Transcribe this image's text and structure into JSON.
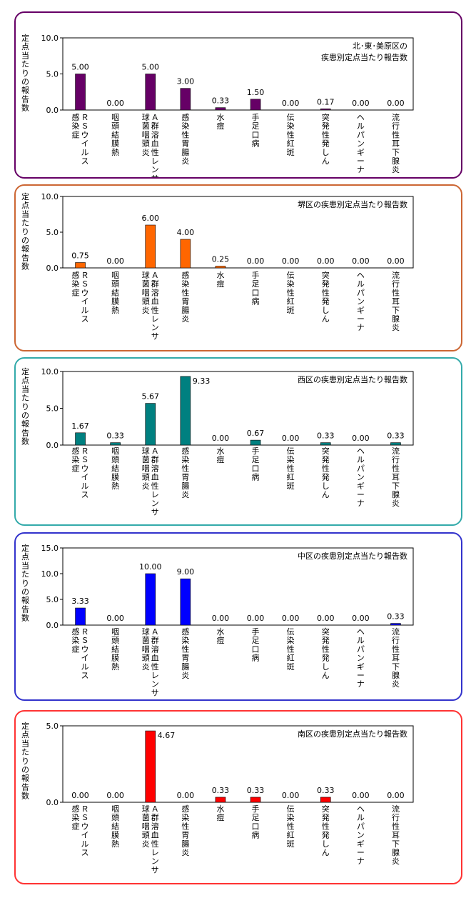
{
  "chart_data": [
    {
      "type": "bar",
      "title_lines": [
        "北･東･美原区の",
        "疾患別定点当たり報告数"
      ],
      "ylabel": "定点当たりの報告数",
      "ylim": [
        0,
        10
      ],
      "yticks": [
        "0.0",
        "5.0",
        "10.0"
      ],
      "color": "#660066",
      "categories": [
        [
          "ＲＳウイルス",
          "感染症"
        ],
        [
          "咽頭結膜熱"
        ],
        [
          "Ａ群溶血性レンサ",
          "球菌咽頭炎"
        ],
        [
          "感染性胃腸炎"
        ],
        [
          "水痘"
        ],
        [
          "手足口病"
        ],
        [
          "伝染性紅斑"
        ],
        [
          "突発性発しん"
        ],
        [
          "ヘルパンギーナ"
        ],
        [
          "流行性耳下腺炎"
        ]
      ],
      "values": [
        5.0,
        0.0,
        5.0,
        3.0,
        0.33,
        1.5,
        0.0,
        0.17,
        0.0,
        0.0
      ],
      "value_labels": [
        "5.00",
        "0.00",
        "5.00",
        "3.00",
        "0.33",
        "1.50",
        "0.00",
        "0.17",
        "0.00",
        "0.00"
      ]
    },
    {
      "type": "bar",
      "title_lines": [
        "堺区の疾患別定点当たり報告数"
      ],
      "ylabel": "定点当たりの報告数",
      "ylim": [
        0,
        10
      ],
      "yticks": [
        "0.0",
        "5.0",
        "10.0"
      ],
      "color": "#ff6600",
      "categories": [
        [
          "ＲＳウイルス",
          "感染症"
        ],
        [
          "咽頭結膜熱"
        ],
        [
          "Ａ群溶血性レンサ",
          "球菌咽頭炎"
        ],
        [
          "感染性胃腸炎"
        ],
        [
          "水痘"
        ],
        [
          "手足口病"
        ],
        [
          "伝染性紅斑"
        ],
        [
          "突発性発しん"
        ],
        [
          "ヘルパンギーナ"
        ],
        [
          "流行性耳下腺炎"
        ]
      ],
      "values": [
        0.75,
        0.0,
        6.0,
        4.0,
        0.25,
        0.0,
        0.0,
        0.0,
        0.0,
        0.0
      ],
      "value_labels": [
        "0.75",
        "0.00",
        "6.00",
        "4.00",
        "0.25",
        "0.00",
        "0.00",
        "0.00",
        "0.00",
        "0.00"
      ]
    },
    {
      "type": "bar",
      "title_lines": [
        "西区の疾患別定点当たり報告数"
      ],
      "ylabel": "定点当たりの報告数",
      "ylim": [
        0,
        10
      ],
      "yticks": [
        "0.0",
        "5.0",
        "10.0"
      ],
      "color": "#008080",
      "categories": [
        [
          "ＲＳウイルス",
          "感染症"
        ],
        [
          "咽頭結膜熱"
        ],
        [
          "Ａ群溶血性レンサ",
          "球菌咽頭炎"
        ],
        [
          "感染性胃腸炎"
        ],
        [
          "水痘"
        ],
        [
          "手足口病"
        ],
        [
          "伝染性紅斑"
        ],
        [
          "突発性発しん"
        ],
        [
          "ヘルパンギーナ"
        ],
        [
          "流行性耳下腺炎"
        ]
      ],
      "values": [
        1.67,
        0.33,
        5.67,
        9.33,
        0.0,
        0.67,
        0.0,
        0.33,
        0.0,
        0.33
      ],
      "value_labels": [
        "1.67",
        "0.33",
        "5.67",
        "9.33",
        "0.00",
        "0.67",
        "0.00",
        "0.33",
        "0.00",
        "0.33"
      ]
    },
    {
      "type": "bar",
      "title_lines": [
        "中区の疾患別定点当たり報告数"
      ],
      "ylabel": "定点当たりの報告数",
      "ylim": [
        0,
        15
      ],
      "yticks": [
        "0.0",
        "5.0",
        "10.0",
        "15.0"
      ],
      "color": "#0000ff",
      "categories": [
        [
          "ＲＳウイルス",
          "感染症"
        ],
        [
          "咽頭結膜熱"
        ],
        [
          "Ａ群溶血性レンサ",
          "球菌咽頭炎"
        ],
        [
          "感染性胃腸炎"
        ],
        [
          "水痘"
        ],
        [
          "手足口病"
        ],
        [
          "伝染性紅斑"
        ],
        [
          "突発性発しん"
        ],
        [
          "ヘルパンギーナ"
        ],
        [
          "流行性耳下腺炎"
        ]
      ],
      "values": [
        3.33,
        0.0,
        10.0,
        9.0,
        0.0,
        0.0,
        0.0,
        0.0,
        0.0,
        0.33
      ],
      "value_labels": [
        "3.33",
        "0.00",
        "10.00",
        "9.00",
        "0.00",
        "0.00",
        "0.00",
        "0.00",
        "0.00",
        "0.33"
      ]
    },
    {
      "type": "bar",
      "title_lines": [
        "南区の疾患別定点当たり報告数"
      ],
      "ylabel": "定点当たりの報告数",
      "ylim": [
        0,
        5
      ],
      "yticks": [
        "0.0",
        "5.0"
      ],
      "color": "#ff0000",
      "categories": [
        [
          "ＲＳウイルス",
          "感染症"
        ],
        [
          "咽頭結膜熱"
        ],
        [
          "Ａ群溶血性レンサ",
          "球菌咽頭炎"
        ],
        [
          "感染性胃腸炎"
        ],
        [
          "水痘"
        ],
        [
          "手足口病"
        ],
        [
          "伝染性紅斑"
        ],
        [
          "突発性発しん"
        ],
        [
          "ヘルパンギーナ"
        ],
        [
          "流行性耳下腺炎"
        ]
      ],
      "values": [
        0.0,
        0.0,
        4.67,
        0.0,
        0.33,
        0.33,
        0.0,
        0.33,
        0.0,
        0.0
      ],
      "value_labels": [
        "0.00",
        "0.00",
        "4.67",
        "0.00",
        "0.33",
        "0.33",
        "0.00",
        "0.33",
        "0.00",
        "0.00"
      ]
    }
  ],
  "panel_border_colors": [
    "#660066",
    "#cc6633",
    "#33aaaa",
    "#3333cc",
    "#ff3333"
  ]
}
